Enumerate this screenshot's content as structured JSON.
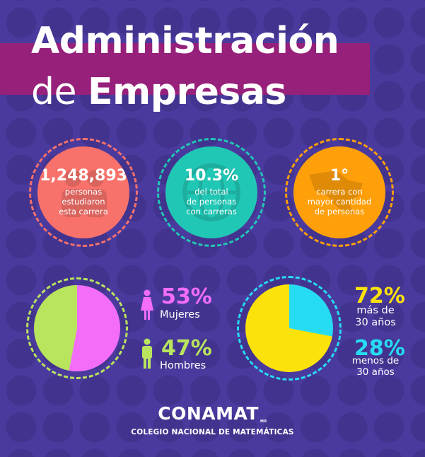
{
  "title": {
    "line1": "Administración",
    "line2_prefix": "de ",
    "line2_bold": "Empresas"
  },
  "colors": {
    "background": "#4a3a9e",
    "title_band": "#96207a",
    "coral": "#f8716a",
    "teal": "#21c7b5",
    "orange": "#ff9f0a",
    "pink": "#f36df9",
    "lime": "#b9e45e",
    "yellow": "#fbe20a",
    "cyan": "#26dcf2"
  },
  "stats": [
    {
      "value": "1,248,893",
      "desc_lines": [
        "personas",
        "estudiaron",
        "esta carrera"
      ],
      "color": "coral",
      "icon": "people-icon"
    },
    {
      "value": "10.3%",
      "desc_lines": [
        "del total",
        "de personas",
        "con carreras"
      ],
      "color": "teal",
      "icon": "globe-icon"
    },
    {
      "value": "1°",
      "desc_lines": [
        "carrera con",
        "mayor cantidad",
        "de personas"
      ],
      "color": "orange",
      "icon": "map-icon"
    }
  ],
  "gender": {
    "female": {
      "value": "53%",
      "percent": 53,
      "label": "Mujeres",
      "icon": "woman-icon"
    },
    "male": {
      "value": "47%",
      "percent": 47,
      "label": "Hombres",
      "icon": "man-icon"
    }
  },
  "age": {
    "over30": {
      "value": "72%",
      "percent": 72,
      "label_lines": [
        "más de",
        "30 años"
      ]
    },
    "under30": {
      "value": "28%",
      "percent": 28,
      "label_lines": [
        "menos de",
        "30 años"
      ]
    }
  },
  "logo": {
    "name": "CONAMAT",
    "mark": "MR",
    "caption": "COLEGIO NACIONAL DE MATEMÁTICAS"
  }
}
